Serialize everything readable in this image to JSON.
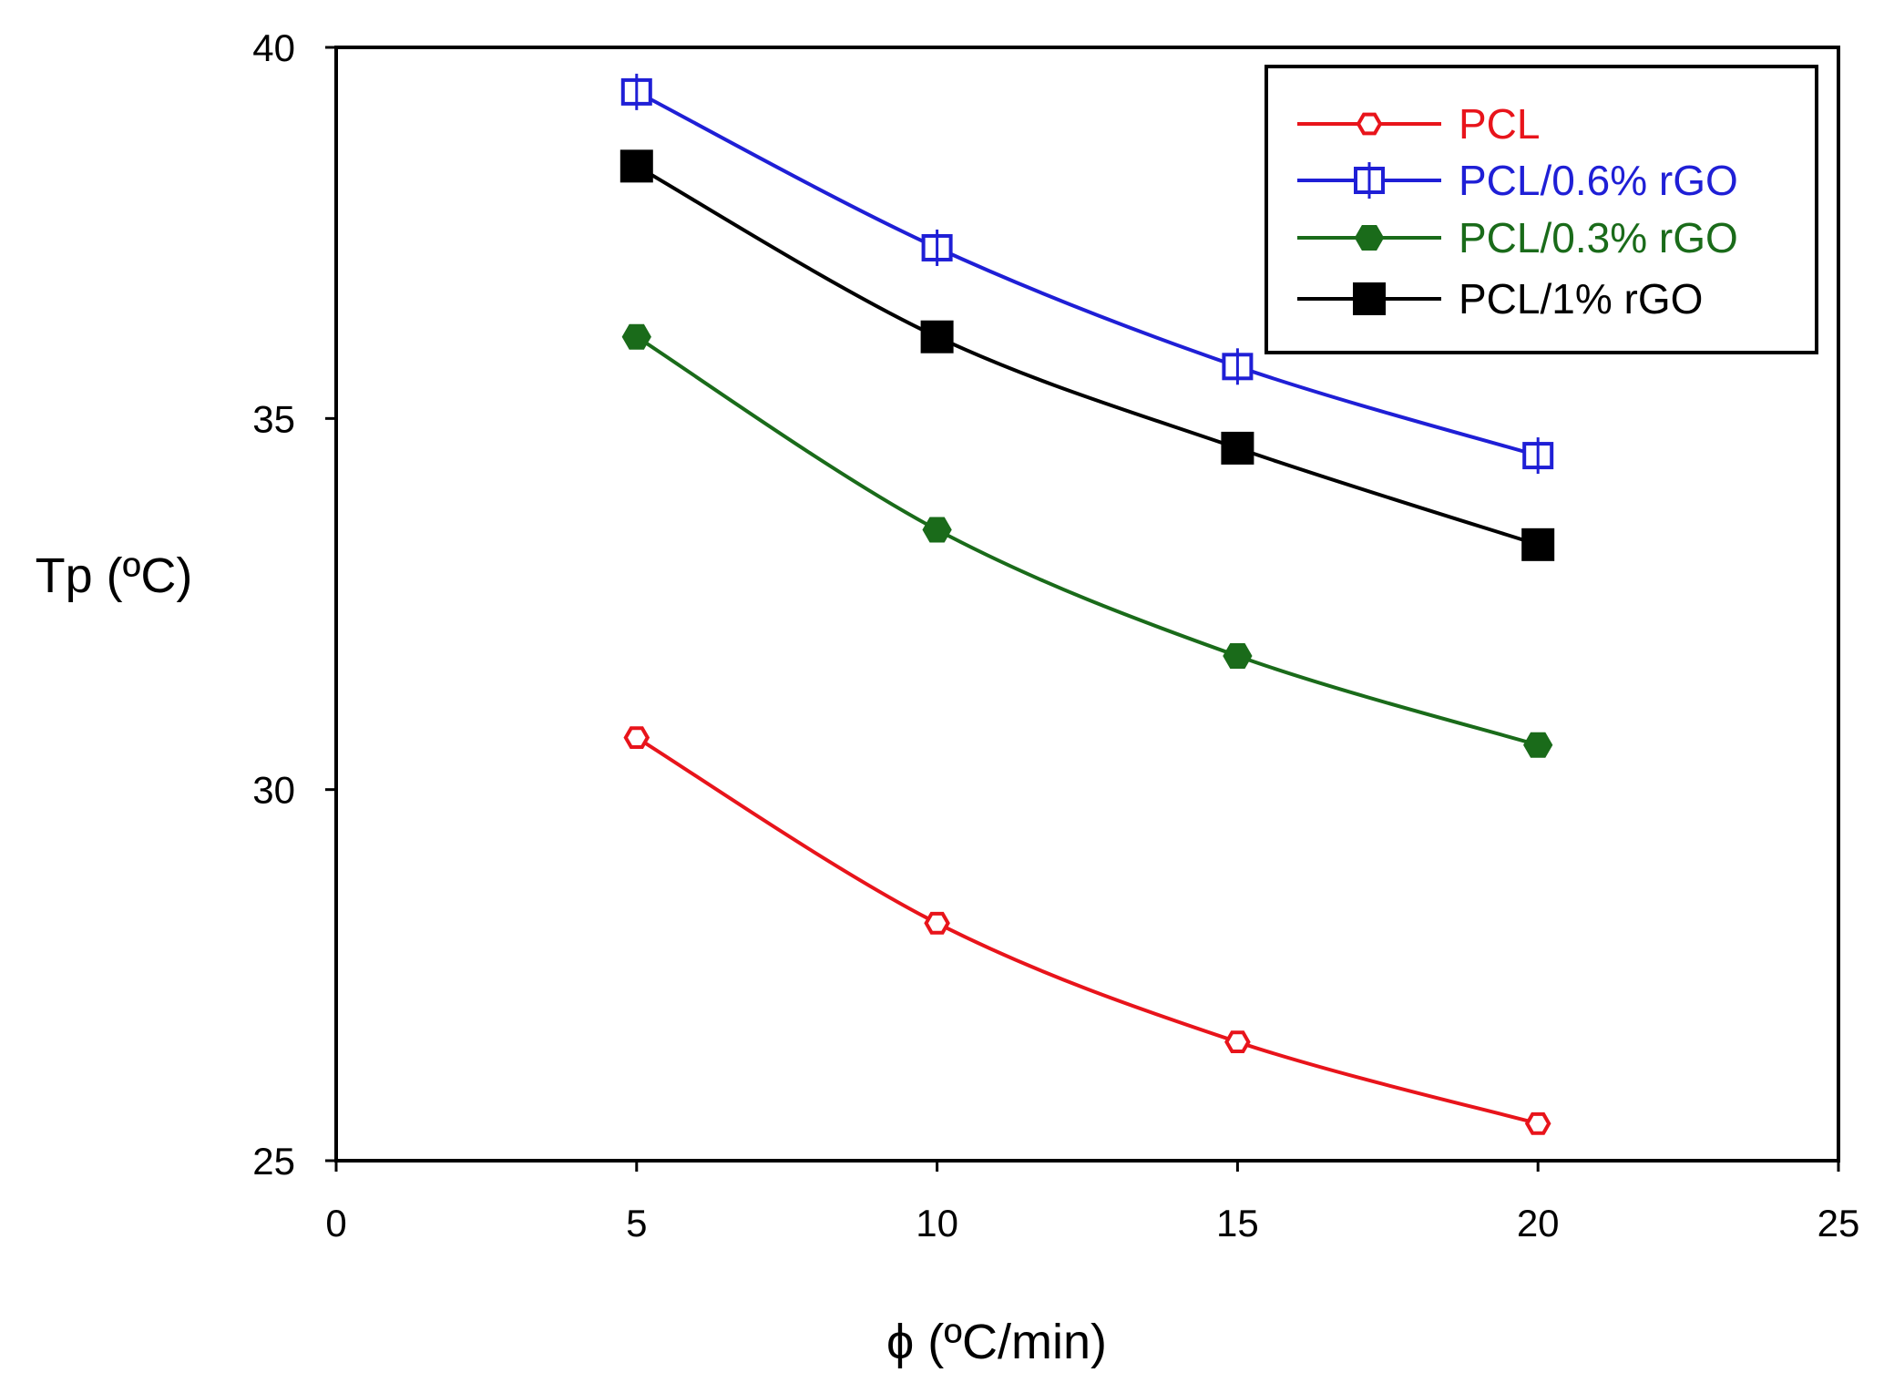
{
  "chart_data": {
    "type": "line",
    "title": "",
    "xlabel": "ϕ (ºC/min)",
    "ylabel": "Tp (ºC)",
    "xlim": [
      0,
      25
    ],
    "ylim": [
      25,
      40
    ],
    "x_ticks": [
      "0",
      "5",
      "10",
      "15",
      "20",
      "25"
    ],
    "y_ticks": [
      "25",
      "30",
      "35",
      "40"
    ],
    "grid": false,
    "legend_position": "top-right",
    "x": [
      5,
      10,
      15,
      20
    ],
    "series": [
      {
        "name": "PCL",
        "color": "#e8141b",
        "marker": "open-hexagon",
        "values": [
          30.7,
          28.2,
          26.6,
          25.5
        ]
      },
      {
        "name": "PCL/0.6% rGO",
        "color": "#1f1fd6",
        "marker": "open-square",
        "values": [
          39.4,
          37.3,
          35.7,
          34.5
        ]
      },
      {
        "name": "PCL/0.3% rGO",
        "color": "#1a6b1a",
        "marker": "filled-hexagon",
        "values": [
          36.1,
          33.5,
          31.8,
          30.6
        ]
      },
      {
        "name": "PCL/1% rGO",
        "color": "#000000",
        "marker": "filled-square",
        "values": [
          38.4,
          36.1,
          34.6,
          33.3
        ]
      }
    ]
  }
}
